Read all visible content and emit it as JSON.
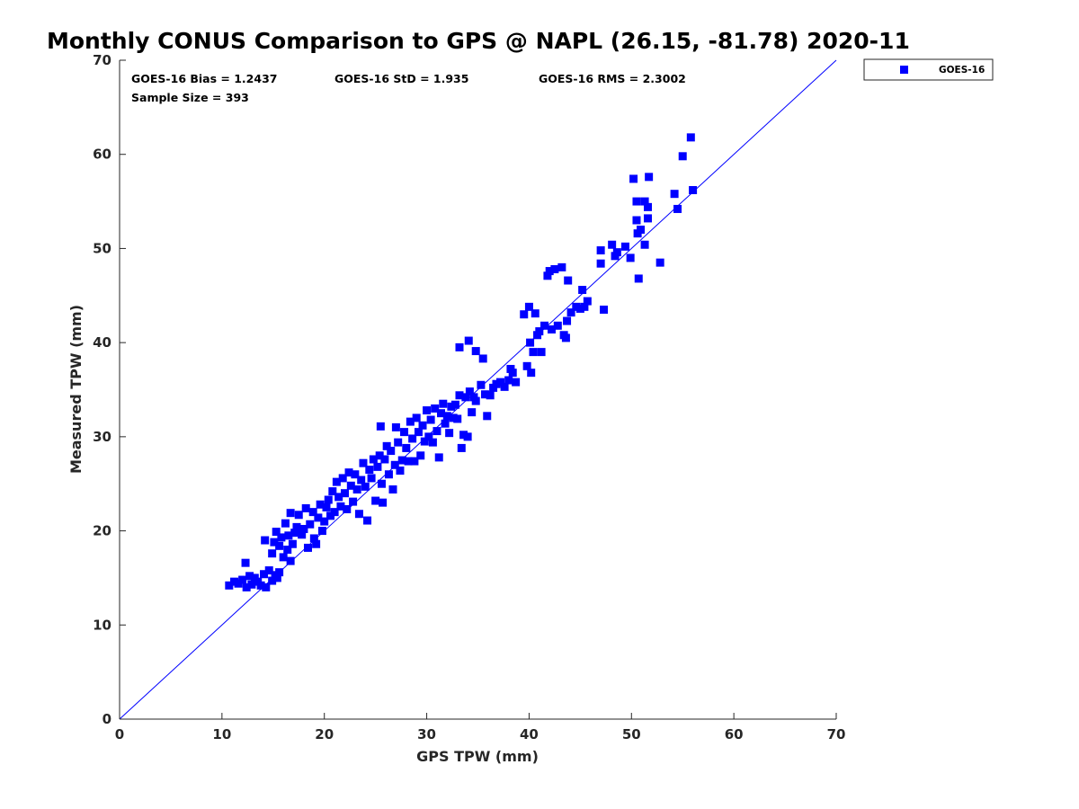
{
  "chart_data": {
    "type": "scatter",
    "title": "Monthly CONUS Comparison to GPS @ NAPL (26.15, -81.78) 2020-11",
    "xlabel": "GPS TPW (mm)",
    "ylabel": "Measured TPW (mm)",
    "xlim": [
      0,
      70
    ],
    "ylim": [
      0,
      70
    ],
    "xticks": [
      0,
      10,
      20,
      30,
      40,
      50,
      60,
      70
    ],
    "yticks": [
      0,
      10,
      20,
      30,
      40,
      50,
      60,
      70
    ],
    "grid": false,
    "legend_position": "outside-top-right",
    "reference_line": {
      "from": [
        0,
        0
      ],
      "to": [
        70,
        70
      ],
      "color": "#0000ff"
    },
    "stats": {
      "bias": "GOES-16 Bias = 1.2437",
      "std": "GOES-16 StD = 1.935",
      "rms": "GOES-16 RMS = 2.3002",
      "sample_size": "Sample Size = 393"
    },
    "series": [
      {
        "name": "GOES-16",
        "color": "#0000ff",
        "marker": "square",
        "points": [
          [
            10.7,
            14.2
          ],
          [
            11.2,
            14.6
          ],
          [
            11.6,
            14.4
          ],
          [
            12.0,
            14.8
          ],
          [
            12.3,
            16.6
          ],
          [
            12.4,
            14.0
          ],
          [
            12.7,
            15.2
          ],
          [
            12.9,
            14.3
          ],
          [
            13.2,
            15.0
          ],
          [
            13.5,
            14.6
          ],
          [
            13.8,
            14.2
          ],
          [
            14.1,
            15.4
          ],
          [
            14.3,
            14.0
          ],
          [
            14.6,
            15.8
          ],
          [
            14.9,
            14.7
          ],
          [
            15.2,
            15.3
          ],
          [
            15.4,
            15.0
          ],
          [
            15.6,
            15.6
          ],
          [
            14.2,
            19.0
          ],
          [
            14.9,
            17.6
          ],
          [
            15.1,
            18.8
          ],
          [
            15.3,
            19.9
          ],
          [
            15.6,
            18.4
          ],
          [
            15.8,
            19.3
          ],
          [
            16.0,
            17.2
          ],
          [
            16.2,
            20.8
          ],
          [
            16.4,
            18.0
          ],
          [
            16.5,
            19.5
          ],
          [
            16.7,
            16.8
          ],
          [
            16.9,
            18.6
          ],
          [
            16.7,
            21.9
          ],
          [
            17.1,
            19.8
          ],
          [
            17.3,
            20.4
          ],
          [
            17.5,
            21.7
          ],
          [
            17.8,
            19.6
          ],
          [
            18.0,
            20.2
          ],
          [
            18.2,
            22.4
          ],
          [
            18.4,
            18.2
          ],
          [
            18.6,
            20.7
          ],
          [
            18.9,
            22.0
          ],
          [
            19.0,
            19.2
          ],
          [
            19.2,
            18.6
          ],
          [
            19.4,
            21.4
          ],
          [
            19.6,
            22.8
          ],
          [
            19.8,
            20.0
          ],
          [
            20.0,
            21.0
          ],
          [
            20.2,
            22.5
          ],
          [
            20.4,
            23.3
          ],
          [
            20.6,
            21.6
          ],
          [
            20.8,
            24.2
          ],
          [
            21.0,
            22.0
          ],
          [
            21.2,
            25.2
          ],
          [
            21.4,
            23.6
          ],
          [
            21.6,
            22.6
          ],
          [
            21.8,
            25.6
          ],
          [
            22.0,
            24.0
          ],
          [
            22.2,
            22.3
          ],
          [
            22.4,
            26.2
          ],
          [
            22.6,
            24.8
          ],
          [
            22.8,
            23.1
          ],
          [
            23.0,
            26.0
          ],
          [
            23.2,
            24.4
          ],
          [
            23.4,
            21.8
          ],
          [
            23.6,
            25.4
          ],
          [
            23.8,
            27.2
          ],
          [
            24.0,
            24.7
          ],
          [
            24.2,
            21.1
          ],
          [
            24.4,
            26.5
          ],
          [
            24.6,
            25.6
          ],
          [
            24.8,
            27.6
          ],
          [
            25.0,
            23.2
          ],
          [
            25.2,
            26.8
          ],
          [
            25.4,
            28.0
          ],
          [
            25.6,
            25.0
          ],
          [
            25.5,
            31.1
          ],
          [
            25.7,
            23.0
          ],
          [
            25.9,
            27.6
          ],
          [
            26.1,
            29.0
          ],
          [
            26.3,
            26.0
          ],
          [
            26.5,
            28.5
          ],
          [
            26.7,
            24.4
          ],
          [
            26.9,
            27.0
          ],
          [
            27.0,
            31.0
          ],
          [
            27.2,
            29.4
          ],
          [
            27.4,
            26.4
          ],
          [
            27.6,
            27.5
          ],
          [
            27.8,
            30.5
          ],
          [
            28.0,
            28.8
          ],
          [
            28.2,
            27.4
          ],
          [
            28.4,
            31.6
          ],
          [
            28.6,
            29.8
          ],
          [
            28.8,
            27.4
          ],
          [
            29.0,
            32.0
          ],
          [
            29.2,
            30.5
          ],
          [
            29.4,
            28.0
          ],
          [
            29.6,
            31.2
          ],
          [
            29.8,
            29.5
          ],
          [
            30.0,
            32.8
          ],
          [
            30.2,
            30.0
          ],
          [
            30.4,
            31.8
          ],
          [
            30.6,
            29.4
          ],
          [
            30.8,
            33.0
          ],
          [
            31.0,
            30.6
          ],
          [
            31.2,
            27.8
          ],
          [
            31.4,
            32.5
          ],
          [
            31.6,
            33.5
          ],
          [
            31.8,
            31.4
          ],
          [
            32.0,
            32.2
          ],
          [
            32.2,
            30.4
          ],
          [
            32.4,
            33.2
          ],
          [
            32.6,
            32.0
          ],
          [
            32.8,
            33.4
          ],
          [
            33.0,
            31.9
          ],
          [
            33.2,
            34.4
          ],
          [
            33.4,
            28.8
          ],
          [
            33.6,
            30.2
          ],
          [
            33.8,
            34.2
          ],
          [
            34.0,
            30.0
          ],
          [
            34.2,
            34.8
          ],
          [
            34.4,
            32.6
          ],
          [
            34.6,
            34.2
          ],
          [
            34.8,
            33.8
          ],
          [
            33.2,
            39.5
          ],
          [
            34.1,
            40.2
          ],
          [
            34.8,
            39.1
          ],
          [
            35.3,
            35.5
          ],
          [
            35.5,
            38.3
          ],
          [
            35.7,
            34.5
          ],
          [
            35.9,
            32.2
          ],
          [
            36.2,
            34.4
          ],
          [
            36.5,
            35.2
          ],
          [
            36.8,
            35.6
          ],
          [
            37.2,
            35.8
          ],
          [
            37.6,
            35.3
          ],
          [
            38.0,
            36.0
          ],
          [
            38.2,
            37.2
          ],
          [
            38.4,
            36.8
          ],
          [
            38.7,
            35.8
          ],
          [
            39.5,
            43.0
          ],
          [
            39.8,
            37.5
          ],
          [
            40.0,
            43.8
          ],
          [
            40.1,
            40.0
          ],
          [
            40.2,
            36.8
          ],
          [
            40.4,
            39.0
          ],
          [
            40.6,
            43.1
          ],
          [
            40.8,
            40.8
          ],
          [
            41.0,
            41.2
          ],
          [
            41.2,
            39.0
          ],
          [
            41.5,
            41.8
          ],
          [
            41.8,
            47.1
          ],
          [
            42.0,
            47.6
          ],
          [
            42.2,
            41.4
          ],
          [
            42.5,
            47.8
          ],
          [
            42.8,
            41.8
          ],
          [
            43.2,
            48.0
          ],
          [
            43.4,
            40.8
          ],
          [
            43.6,
            40.5
          ],
          [
            43.7,
            42.3
          ],
          [
            43.8,
            46.6
          ],
          [
            44.1,
            43.2
          ],
          [
            44.6,
            43.8
          ],
          [
            45.0,
            43.6
          ],
          [
            45.2,
            45.6
          ],
          [
            45.4,
            43.8
          ],
          [
            45.7,
            44.4
          ],
          [
            47.0,
            48.4
          ],
          [
            47.0,
            49.8
          ],
          [
            47.3,
            43.5
          ],
          [
            48.1,
            50.4
          ],
          [
            48.4,
            49.2
          ],
          [
            48.6,
            49.6
          ],
          [
            49.4,
            50.2
          ],
          [
            49.9,
            49.0
          ],
          [
            50.2,
            57.4
          ],
          [
            50.5,
            55.0
          ],
          [
            50.5,
            53.0
          ],
          [
            50.6,
            51.6
          ],
          [
            50.7,
            46.8
          ],
          [
            50.9,
            52.0
          ],
          [
            51.3,
            55.0
          ],
          [
            51.3,
            50.4
          ],
          [
            51.6,
            53.2
          ],
          [
            51.7,
            57.6
          ],
          [
            51.6,
            54.4
          ],
          [
            52.8,
            48.5
          ],
          [
            54.2,
            55.8
          ],
          [
            54.5,
            54.2
          ],
          [
            55.0,
            59.8
          ],
          [
            55.8,
            61.8
          ],
          [
            56.0,
            56.2
          ]
        ]
      }
    ]
  }
}
